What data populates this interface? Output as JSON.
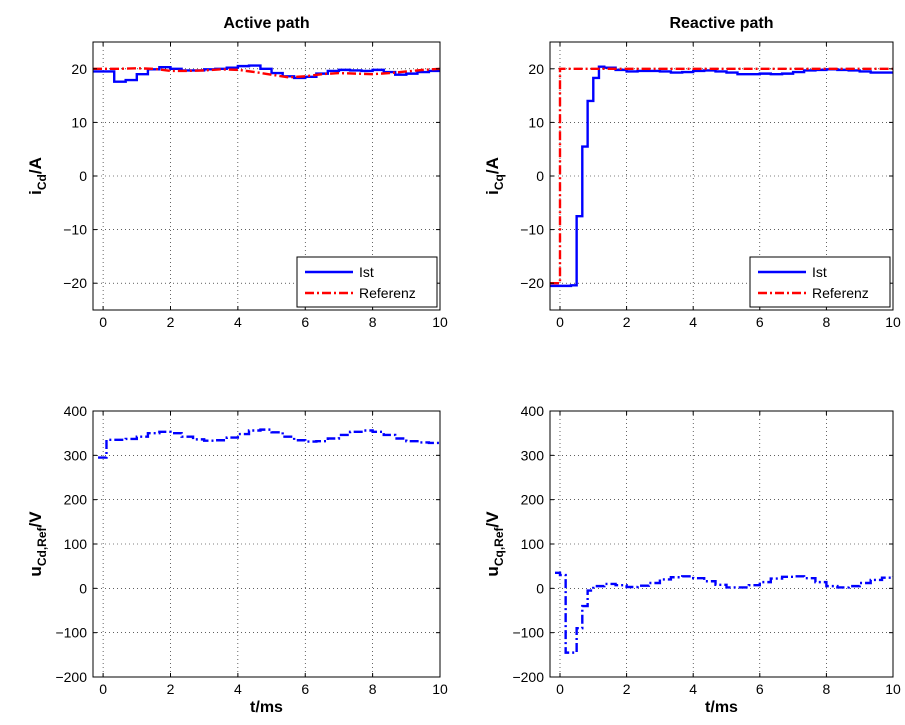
{
  "chart_data": [
    {
      "type": "line",
      "title": "Active path",
      "xlabel": "",
      "ylabel": "i",
      "ylabel_sub": "Cd",
      "ylabel_unit": "/A",
      "xlim": [
        -0.3,
        10
      ],
      "ylim": [
        -25,
        25
      ],
      "xticks": [
        0,
        2,
        4,
        6,
        8,
        10
      ],
      "xtick_labels": [
        "0",
        "2",
        "4",
        "6",
        "8",
        "10"
      ],
      "yticks": [
        -20,
        -10,
        0,
        10,
        20
      ],
      "ytick_labels": [
        "−20",
        "−10",
        "0",
        "10",
        "20"
      ],
      "grid": true,
      "legend": "bottom-right",
      "series": [
        {
          "name": "Ist",
          "color": "#0000ff",
          "style": "solid",
          "step": true,
          "x": [
            -0.3,
            0.0,
            0.33,
            0.67,
            1.0,
            1.33,
            1.67,
            2.0,
            2.33,
            2.67,
            3.0,
            3.33,
            3.67,
            4.0,
            4.33,
            4.67,
            5.0,
            5.33,
            5.67,
            6.0,
            6.33,
            6.67,
            7.0,
            7.33,
            7.67,
            8.0,
            8.33,
            8.67,
            9.0,
            9.33,
            9.67,
            10.0
          ],
          "y": [
            19.5,
            19.5,
            17.6,
            17.9,
            19.0,
            19.9,
            20.3,
            20.0,
            19.7,
            19.7,
            19.9,
            20.0,
            20.2,
            20.5,
            20.6,
            20.0,
            19.2,
            18.6,
            18.3,
            18.5,
            19.1,
            19.6,
            19.8,
            19.7,
            19.6,
            19.8,
            19.4,
            18.9,
            19.1,
            19.4,
            19.6,
            19.6
          ]
        },
        {
          "name": "Referenz",
          "color": "#ff0000",
          "style": "dashdot",
          "step": false,
          "x": [
            -0.3,
            0,
            0.5,
            1.0,
            1.5,
            2.0,
            2.5,
            3.0,
            3.5,
            4.0,
            4.5,
            5.0,
            5.5,
            6.0,
            6.5,
            7.0,
            7.5,
            8.0,
            8.5,
            9.0,
            9.5,
            10
          ],
          "y": [
            20.0,
            20.0,
            20.0,
            20.1,
            20.0,
            19.6,
            19.6,
            19.7,
            19.9,
            19.8,
            19.4,
            18.9,
            18.4,
            18.6,
            19.0,
            19.2,
            19.1,
            19.0,
            19.2,
            19.5,
            19.8,
            20.0
          ]
        }
      ]
    },
    {
      "type": "line",
      "title": "Reactive path",
      "xlabel": "",
      "ylabel": "i",
      "ylabel_sub": "Cq",
      "ylabel_unit": "/A",
      "xlim": [
        -0.3,
        10
      ],
      "ylim": [
        -25,
        25
      ],
      "xticks": [
        0,
        2,
        4,
        6,
        8,
        10
      ],
      "xtick_labels": [
        "0",
        "2",
        "4",
        "6",
        "8",
        "10"
      ],
      "yticks": [
        -20,
        -10,
        0,
        10,
        20
      ],
      "ytick_labels": [
        "−20",
        "−10",
        "0",
        "10",
        "20"
      ],
      "grid": true,
      "legend": "bottom-right",
      "series": [
        {
          "name": "Ist",
          "color": "#0000ff",
          "style": "solid",
          "step": true,
          "x": [
            -0.3,
            0.0,
            0.33,
            0.5,
            0.67,
            0.83,
            1.0,
            1.17,
            1.33,
            1.67,
            2.0,
            2.33,
            2.67,
            3.0,
            3.33,
            3.67,
            4.0,
            4.33,
            4.67,
            5.0,
            5.33,
            5.67,
            6.0,
            6.33,
            6.67,
            7.0,
            7.33,
            7.67,
            8.0,
            8.33,
            8.67,
            9.0,
            9.33,
            9.67,
            10.0
          ],
          "y": [
            -20.5,
            -20.5,
            -20.4,
            -7.5,
            5.5,
            14.0,
            18.3,
            20.4,
            20.2,
            19.8,
            19.5,
            19.6,
            19.6,
            19.5,
            19.3,
            19.4,
            19.6,
            19.7,
            19.5,
            19.3,
            19.0,
            19.0,
            19.1,
            19.0,
            19.1,
            19.4,
            19.7,
            19.8,
            19.9,
            19.8,
            19.7,
            19.5,
            19.3,
            19.3,
            19.2
          ]
        },
        {
          "name": "Referenz",
          "color": "#ff0000",
          "style": "dashdot",
          "step": false,
          "x": [
            -0.3,
            0.0,
            0.0,
            10
          ],
          "y": [
            -20.0,
            -20.0,
            20.0,
            20.0
          ]
        }
      ]
    },
    {
      "type": "line",
      "title": "",
      "xlabel": "t/ms",
      "ylabel": "u",
      "ylabel_sub": "Cd,Ref",
      "ylabel_unit": "/V",
      "xlim": [
        -0.3,
        10
      ],
      "ylim": [
        -200,
        400
      ],
      "xticks": [
        0,
        2,
        4,
        6,
        8,
        10
      ],
      "xtick_labels": [
        "0",
        "2",
        "4",
        "6",
        "8",
        "10"
      ],
      "yticks": [
        -200,
        -100,
        0,
        100,
        200,
        300,
        400
      ],
      "ytick_labels": [
        "−200",
        "−100",
        "0",
        "100",
        "200",
        "300",
        "400"
      ],
      "grid": true,
      "legend": "none",
      "series": [
        {
          "name": "",
          "color": "#0000ff",
          "style": "dashdot",
          "step": true,
          "x": [
            -0.15,
            0.1,
            0.33,
            0.67,
            1.0,
            1.33,
            1.67,
            2.0,
            2.33,
            2.67,
            3.0,
            3.33,
            3.67,
            4.0,
            4.33,
            4.67,
            5.0,
            5.33,
            5.67,
            6.0,
            6.33,
            6.67,
            7.0,
            7.33,
            7.67,
            8.0,
            8.33,
            8.67,
            9.0,
            9.33,
            9.67,
            10.0
          ],
          "y": [
            295,
            335,
            335,
            337,
            342,
            350,
            353,
            350,
            342,
            336,
            333,
            334,
            340,
            348,
            356,
            358,
            352,
            342,
            334,
            331,
            332,
            338,
            346,
            353,
            356,
            353,
            346,
            338,
            332,
            329,
            328,
            328
          ]
        }
      ]
    },
    {
      "type": "line",
      "title": "",
      "xlabel": "t/ms",
      "ylabel": "u",
      "ylabel_sub": "Cq,Ref",
      "ylabel_unit": "/V",
      "xlim": [
        -0.3,
        10
      ],
      "ylim": [
        -200,
        400
      ],
      "xticks": [
        0,
        2,
        4,
        6,
        8,
        10
      ],
      "xtick_labels": [
        "0",
        "2",
        "4",
        "6",
        "8",
        "10"
      ],
      "yticks": [
        -200,
        -100,
        0,
        100,
        200,
        300,
        400
      ],
      "ytick_labels": [
        "−200",
        "−100",
        "0",
        "100",
        "200",
        "300",
        "400"
      ],
      "grid": true,
      "legend": "none",
      "series": [
        {
          "name": "",
          "color": "#0000ff",
          "style": "dashdot",
          "step": true,
          "x": [
            -0.15,
            0.0,
            0.17,
            0.5,
            0.67,
            0.83,
            1.0,
            1.33,
            1.67,
            2.0,
            2.33,
            2.67,
            3.0,
            3.33,
            3.67,
            4.0,
            4.33,
            4.67,
            5.0,
            5.33,
            5.67,
            6.0,
            6.33,
            6.67,
            7.0,
            7.33,
            7.67,
            8.0,
            8.33,
            8.67,
            9.0,
            9.33,
            9.67,
            10.0
          ],
          "y": [
            35,
            30,
            -145,
            -90,
            -40,
            -5,
            5,
            10,
            7,
            3,
            6,
            12,
            20,
            25,
            27,
            23,
            16,
            8,
            2,
            2,
            7,
            14,
            22,
            26,
            27,
            23,
            14,
            5,
            2,
            5,
            12,
            19,
            24,
            26
          ]
        }
      ]
    }
  ]
}
